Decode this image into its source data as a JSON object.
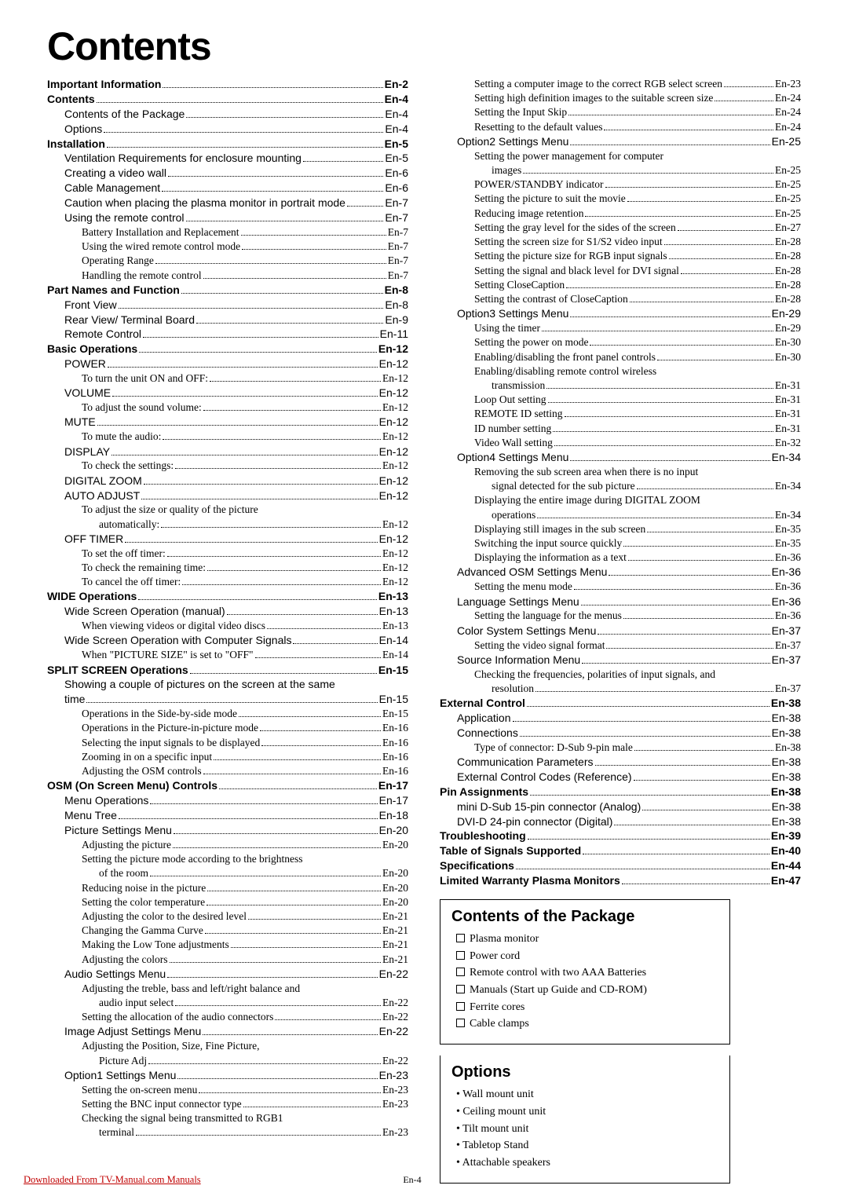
{
  "title": "Contents",
  "pgnum": "En-4",
  "footer_link": "Downloaded From TV-Manual.com Manuals",
  "left": [
    {
      "l": 0,
      "c": "b",
      "t": "Important Information",
      "p": "En-2"
    },
    {
      "l": 0,
      "c": "b",
      "t": "Contents",
      "p": "En-4"
    },
    {
      "l": 1,
      "c": "m",
      "t": "Contents of the Package",
      "p": "En-4"
    },
    {
      "l": 1,
      "c": "m",
      "t": "Options",
      "p": "En-4"
    },
    {
      "l": 0,
      "c": "b",
      "t": "Installation",
      "p": "En-5"
    },
    {
      "l": 1,
      "c": "m",
      "t": "Ventilation Requirements for enclosure mounting",
      "p": "En-5"
    },
    {
      "l": 1,
      "c": "m",
      "t": "Creating a video wall",
      "p": "En-6"
    },
    {
      "l": 1,
      "c": "m",
      "t": "Cable Management",
      "p": "En-6"
    },
    {
      "l": 1,
      "c": "m",
      "t": "Caution when placing the plasma monitor in portrait mode",
      "p": "En-7"
    },
    {
      "l": 1,
      "c": "m",
      "t": "Using the remote control",
      "p": "En-7"
    },
    {
      "l": 2,
      "c": "s",
      "t": "Battery Installation and Replacement",
      "p": "En-7"
    },
    {
      "l": 2,
      "c": "s",
      "t": "Using the wired remote control mode",
      "p": "En-7"
    },
    {
      "l": 2,
      "c": "s",
      "t": "Operating Range",
      "p": "En-7"
    },
    {
      "l": 2,
      "c": "s",
      "t": "Handling the remote control",
      "p": "En-7"
    },
    {
      "l": 0,
      "c": "b",
      "t": "Part Names and Function",
      "p": "En-8"
    },
    {
      "l": 1,
      "c": "m",
      "t": "Front View",
      "p": "En-8"
    },
    {
      "l": 1,
      "c": "m",
      "t": "Rear View/ Terminal Board",
      "p": "En-9"
    },
    {
      "l": 1,
      "c": "m",
      "t": "Remote Control",
      "p": "En-11"
    },
    {
      "l": 0,
      "c": "b",
      "t": "Basic Operations",
      "p": "En-12"
    },
    {
      "l": 1,
      "c": "m",
      "t": "POWER",
      "p": "En-12"
    },
    {
      "l": 2,
      "c": "s",
      "t": "To turn the unit ON and OFF:",
      "p": "En-12"
    },
    {
      "l": 1,
      "c": "m",
      "t": "VOLUME",
      "p": "En-12"
    },
    {
      "l": 2,
      "c": "s",
      "t": "To adjust the sound volume:",
      "p": "En-12"
    },
    {
      "l": 1,
      "c": "m",
      "t": "MUTE",
      "p": "En-12"
    },
    {
      "l": 2,
      "c": "s",
      "t": "To mute the audio:",
      "p": "En-12"
    },
    {
      "l": 1,
      "c": "m",
      "t": "DISPLAY",
      "p": "En-12"
    },
    {
      "l": 2,
      "c": "s",
      "t": "To check the settings:",
      "p": "En-12"
    },
    {
      "l": 1,
      "c": "m",
      "t": "DIGITAL ZOOM",
      "p": "En-12"
    },
    {
      "l": 1,
      "c": "m",
      "t": "AUTO ADJUST",
      "p": "En-12"
    },
    {
      "l": 2,
      "c": "s",
      "t": "To adjust the size or quality of the picture",
      "p": ""
    },
    {
      "l": 3,
      "c": "s",
      "t": "automatically:",
      "p": "En-12"
    },
    {
      "l": 1,
      "c": "m",
      "t": "OFF TIMER",
      "p": "En-12"
    },
    {
      "l": 2,
      "c": "s",
      "t": "To set the off timer:",
      "p": "En-12"
    },
    {
      "l": 2,
      "c": "s",
      "t": "To check the remaining time:",
      "p": "En-12"
    },
    {
      "l": 2,
      "c": "s",
      "t": "To cancel the off timer:",
      "p": "En-12"
    },
    {
      "l": 0,
      "c": "b",
      "t": "WIDE Operations",
      "p": "En-13"
    },
    {
      "l": 1,
      "c": "m",
      "t": "Wide Screen Operation (manual)",
      "p": "En-13"
    },
    {
      "l": 2,
      "c": "s",
      "t": "When viewing videos or digital video discs",
      "p": "En-13"
    },
    {
      "l": 1,
      "c": "m",
      "t": "Wide Screen Operation with Computer Signals",
      "p": "En-14"
    },
    {
      "l": 2,
      "c": "s",
      "t": "When \"PICTURE SIZE\" is set to \"OFF\"",
      "p": "En-14"
    },
    {
      "l": 0,
      "c": "b",
      "t": "SPLIT SCREEN Operations",
      "p": "En-15"
    },
    {
      "l": 1,
      "c": "m",
      "t": "Showing a couple of pictures on the screen at the same",
      "p": ""
    },
    {
      "l": 1,
      "c": "m",
      "t": "time",
      "p": "En-15"
    },
    {
      "l": 2,
      "c": "s",
      "t": "Operations in the Side-by-side mode",
      "p": "En-15"
    },
    {
      "l": 2,
      "c": "s",
      "t": "Operations in the Picture-in-picture mode",
      "p": "En-16"
    },
    {
      "l": 2,
      "c": "s",
      "t": "Selecting the input signals to be displayed",
      "p": "En-16"
    },
    {
      "l": 2,
      "c": "s",
      "t": "Zooming in on a specific input",
      "p": "En-16"
    },
    {
      "l": 2,
      "c": "s",
      "t": "Adjusting the OSM controls",
      "p": "En-16"
    },
    {
      "l": 0,
      "c": "b",
      "t": "OSM (On Screen Menu) Controls",
      "p": "En-17"
    },
    {
      "l": 1,
      "c": "m",
      "t": "Menu Operations",
      "p": "En-17"
    },
    {
      "l": 1,
      "c": "m",
      "t": "Menu Tree",
      "p": "En-18"
    },
    {
      "l": 1,
      "c": "m",
      "t": "Picture Settings Menu",
      "p": "En-20"
    },
    {
      "l": 2,
      "c": "s",
      "t": "Adjusting the picture",
      "p": "En-20"
    },
    {
      "l": 2,
      "c": "s",
      "t": "Setting the picture mode according to the brightness",
      "p": ""
    },
    {
      "l": 3,
      "c": "s",
      "t": "of the room",
      "p": "En-20"
    },
    {
      "l": 2,
      "c": "s",
      "t": "Reducing noise in the picture",
      "p": "En-20"
    },
    {
      "l": 2,
      "c": "s",
      "t": "Setting the color temperature",
      "p": "En-20"
    },
    {
      "l": 2,
      "c": "s",
      "t": "Adjusting the color to the desired level",
      "p": "En-21"
    },
    {
      "l": 2,
      "c": "s",
      "t": "Changing the Gamma Curve",
      "p": "En-21"
    },
    {
      "l": 2,
      "c": "s",
      "t": "Making the Low Tone adjustments",
      "p": "En-21"
    },
    {
      "l": 2,
      "c": "s",
      "t": "Adjusting the colors",
      "p": "En-21"
    },
    {
      "l": 1,
      "c": "m",
      "t": "Audio Settings Menu",
      "p": "En-22"
    },
    {
      "l": 2,
      "c": "s",
      "t": "Adjusting the treble, bass and left/right balance and",
      "p": ""
    },
    {
      "l": 3,
      "c": "s",
      "t": "audio input select",
      "p": "En-22"
    },
    {
      "l": 2,
      "c": "s",
      "t": "Setting the allocation of the audio connectors",
      "p": "En-22"
    },
    {
      "l": 1,
      "c": "m",
      "t": "Image Adjust Settings Menu",
      "p": "En-22"
    },
    {
      "l": 2,
      "c": "s",
      "t": "Adjusting the Position, Size, Fine Picture,",
      "p": ""
    },
    {
      "l": 3,
      "c": "s",
      "t": "Picture Adj",
      "p": "En-22"
    },
    {
      "l": 1,
      "c": "m",
      "t": "Option1 Settings Menu",
      "p": "En-23"
    },
    {
      "l": 2,
      "c": "s",
      "t": "Setting the on-screen menu",
      "p": "En-23"
    },
    {
      "l": 2,
      "c": "s",
      "t": "Setting the BNC input connector type",
      "p": "En-23"
    },
    {
      "l": 2,
      "c": "s",
      "t": "Checking the signal being transmitted to RGB1",
      "p": ""
    },
    {
      "l": 3,
      "c": "s",
      "t": "terminal",
      "p": "En-23"
    }
  ],
  "right": [
    {
      "l": 2,
      "c": "s",
      "t": "Setting a computer image to the correct RGB select screen",
      "p": "En-23"
    },
    {
      "l": 2,
      "c": "s",
      "t": "Setting high definition images to the suitable screen size",
      "p": "En-24"
    },
    {
      "l": 2,
      "c": "s",
      "t": "Setting the Input Skip",
      "p": "En-24"
    },
    {
      "l": 2,
      "c": "s",
      "t": "Resetting to the default values",
      "p": "En-24"
    },
    {
      "l": 1,
      "c": "m",
      "t": "Option2 Settings Menu",
      "p": "En-25"
    },
    {
      "l": 2,
      "c": "s",
      "t": "Setting the power management for computer",
      "p": ""
    },
    {
      "l": 3,
      "c": "s",
      "t": "images",
      "p": "En-25"
    },
    {
      "l": 2,
      "c": "s",
      "t": "POWER/STANDBY indicator",
      "p": "En-25"
    },
    {
      "l": 2,
      "c": "s",
      "t": "Setting the picture to suit the movie",
      "p": "En-25"
    },
    {
      "l": 2,
      "c": "s",
      "t": "Reducing image retention",
      "p": "En-25"
    },
    {
      "l": 2,
      "c": "s",
      "t": "Setting the gray level for the sides of the screen",
      "p": "En-27"
    },
    {
      "l": 2,
      "c": "s",
      "t": "Setting the screen size for S1/S2 video input",
      "p": "En-28"
    },
    {
      "l": 2,
      "c": "s",
      "t": "Setting the picture size for RGB input signals",
      "p": "En-28"
    },
    {
      "l": 2,
      "c": "s",
      "t": "Setting the signal and black level for DVI signal",
      "p": "En-28"
    },
    {
      "l": 2,
      "c": "s",
      "t": "Setting CloseCaption",
      "p": "En-28"
    },
    {
      "l": 2,
      "c": "s",
      "t": "Setting the contrast of CloseCaption",
      "p": "En-28"
    },
    {
      "l": 1,
      "c": "m",
      "t": "Option3 Settings Menu",
      "p": "En-29"
    },
    {
      "l": 2,
      "c": "s",
      "t": "Using the timer",
      "p": "En-29"
    },
    {
      "l": 2,
      "c": "s",
      "t": "Setting the power on mode",
      "p": "En-30"
    },
    {
      "l": 2,
      "c": "s",
      "t": "Enabling/disabling the front panel controls",
      "p": "En-30"
    },
    {
      "l": 2,
      "c": "s",
      "t": "Enabling/disabling remote control wireless",
      "p": ""
    },
    {
      "l": 3,
      "c": "s",
      "t": "transmission",
      "p": "En-31"
    },
    {
      "l": 2,
      "c": "s",
      "t": "Loop Out setting",
      "p": "En-31"
    },
    {
      "l": 2,
      "c": "s",
      "t": "REMOTE ID setting",
      "p": "En-31"
    },
    {
      "l": 2,
      "c": "s",
      "t": "ID number setting",
      "p": "En-31"
    },
    {
      "l": 2,
      "c": "s",
      "t": "Video Wall setting",
      "p": "En-32"
    },
    {
      "l": 1,
      "c": "m",
      "t": "Option4 Settings Menu",
      "p": "En-34"
    },
    {
      "l": 2,
      "c": "s",
      "t": "Removing the sub screen area when there is no input",
      "p": ""
    },
    {
      "l": 3,
      "c": "s",
      "t": "signal detected for the sub picture",
      "p": "En-34"
    },
    {
      "l": 2,
      "c": "s",
      "t": "Displaying the entire image during DIGITAL ZOOM",
      "p": ""
    },
    {
      "l": 3,
      "c": "s",
      "t": "operations",
      "p": "En-34"
    },
    {
      "l": 2,
      "c": "s",
      "t": "Displaying still images in the sub screen",
      "p": "En-35"
    },
    {
      "l": 2,
      "c": "s",
      "t": "Switching the input source quickly",
      "p": "En-35"
    },
    {
      "l": 2,
      "c": "s",
      "t": "Displaying the information as a text",
      "p": "En-36"
    },
    {
      "l": 1,
      "c": "m",
      "t": "Advanced OSM Settings Menu",
      "p": "En-36"
    },
    {
      "l": 2,
      "c": "s",
      "t": "Setting the menu mode",
      "p": "En-36"
    },
    {
      "l": 1,
      "c": "m",
      "t": "Language Settings Menu",
      "p": "En-36"
    },
    {
      "l": 2,
      "c": "s",
      "t": "Setting the language for the menus",
      "p": "En-36"
    },
    {
      "l": 1,
      "c": "m",
      "t": "Color System Settings Menu",
      "p": "En-37"
    },
    {
      "l": 2,
      "c": "s",
      "t": "Setting the video signal format",
      "p": "En-37"
    },
    {
      "l": 1,
      "c": "m",
      "t": "Source Information Menu",
      "p": "En-37"
    },
    {
      "l": 2,
      "c": "s",
      "t": "Checking the frequencies, polarities of input signals, and",
      "p": ""
    },
    {
      "l": 3,
      "c": "s",
      "t": "resolution",
      "p": "En-37"
    },
    {
      "l": 0,
      "c": "b",
      "t": "External Control",
      "p": "En-38"
    },
    {
      "l": 1,
      "c": "m",
      "t": "Application",
      "p": "En-38"
    },
    {
      "l": 1,
      "c": "m",
      "t": "Connections",
      "p": "En-38"
    },
    {
      "l": 2,
      "c": "s",
      "t": "Type of connector: D-Sub 9-pin male",
      "p": "En-38"
    },
    {
      "l": 1,
      "c": "m",
      "t": "Communication Parameters",
      "p": "En-38"
    },
    {
      "l": 1,
      "c": "m",
      "t": "External Control Codes (Reference)",
      "p": "En-38"
    },
    {
      "l": 0,
      "c": "b",
      "t": "Pin Assignments",
      "p": "En-38"
    },
    {
      "l": 1,
      "c": "m",
      "t": "mini D-Sub 15-pin connector (Analog)",
      "p": "En-38"
    },
    {
      "l": 1,
      "c": "m",
      "t": "DVI-D 24-pin connector (Digital)",
      "p": "En-38"
    },
    {
      "l": 0,
      "c": "b",
      "t": "Troubleshooting",
      "p": "En-39"
    },
    {
      "l": 0,
      "c": "b",
      "t": "Table of Signals Supported",
      "p": "En-40"
    },
    {
      "l": 0,
      "c": "b",
      "t": "Specifications",
      "p": "En-44"
    },
    {
      "l": 0,
      "c": "b",
      "t": "Limited Warranty  Plasma Monitors",
      "p": "En-47"
    }
  ],
  "box1": {
    "title": "Contents of the Package",
    "items": [
      "Plasma monitor",
      "Power cord",
      "Remote control with two AAA Batteries",
      "Manuals (Start up Guide and CD-ROM)",
      "Ferrite cores",
      "Cable clamps"
    ]
  },
  "box2": {
    "title": "Options",
    "items": [
      "Wall mount unit",
      "Ceiling mount unit",
      "Tilt mount unit",
      "Tabletop Stand",
      "Attachable speakers"
    ]
  }
}
